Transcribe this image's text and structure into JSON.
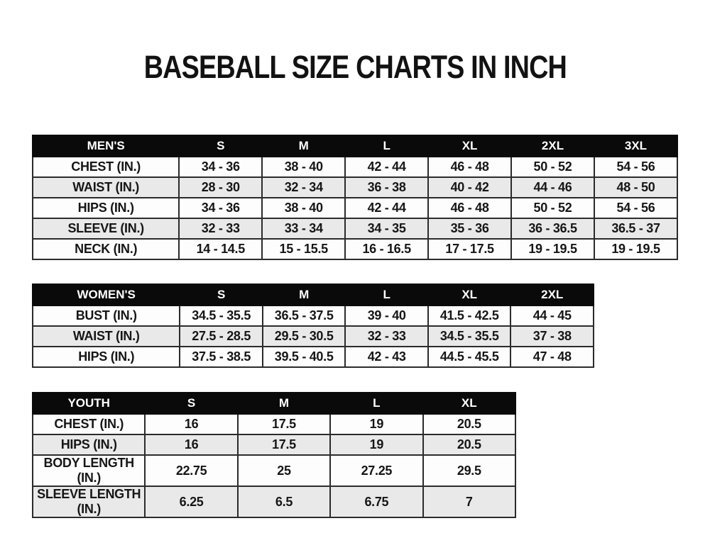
{
  "page": {
    "title": "BASEBALL SIZE CHARTS IN INCH",
    "background_color": "#ffffff",
    "header_bg_color": "#0a0a0a",
    "header_text_color": "#ffffff",
    "row_bg_color": "#fdfdfd",
    "row_alt_bg_color": "#e9e9e9",
    "border_color": "#2b2b2b",
    "text_color": "#161616"
  },
  "tables": [
    {
      "name": "mens",
      "header": [
        "MEN'S",
        "S",
        "M",
        "L",
        "XL",
        "2XL",
        "3XL"
      ],
      "rows": [
        [
          "CHEST (IN.)",
          "34 - 36",
          "38 - 40",
          "42 - 44",
          "46 - 48",
          "50 - 52",
          "54 - 56"
        ],
        [
          "WAIST (IN.)",
          "28 - 30",
          "32 - 34",
          "36 - 38",
          "40 - 42",
          "44 - 46",
          "48 - 50"
        ],
        [
          "HIPS (IN.)",
          "34 - 36",
          "38 - 40",
          "42 - 44",
          "46 - 48",
          "50 - 52",
          "54 - 56"
        ],
        [
          "SLEEVE (IN.)",
          "32 - 33",
          "33 - 34",
          "34 - 35",
          "35 - 36",
          "36 - 36.5",
          "36.5 - 37"
        ],
        [
          "NECK (IN.)",
          "14 - 14.5",
          "15 - 15.5",
          "16 - 16.5",
          "17 - 17.5",
          "19 - 19.5",
          "19 - 19.5"
        ]
      ]
    },
    {
      "name": "womens",
      "header": [
        "WOMEN'S",
        "S",
        "M",
        "L",
        "XL",
        "2XL"
      ],
      "rows": [
        [
          "BUST (IN.)",
          "34.5 - 35.5",
          "36.5 - 37.5",
          "39 - 40",
          "41.5 - 42.5",
          "44 - 45"
        ],
        [
          "WAIST (IN.)",
          "27.5 - 28.5",
          "29.5 - 30.5",
          "32 - 33",
          "34.5 - 35.5",
          "37 - 38"
        ],
        [
          "HIPS (IN.)",
          "37.5 - 38.5",
          "39.5 - 40.5",
          "42 - 43",
          "44.5 - 45.5",
          "47 - 48"
        ]
      ]
    },
    {
      "name": "youth",
      "header": [
        "YOUTH",
        "S",
        "M",
        "L",
        "XL"
      ],
      "rows": [
        [
          "CHEST (IN.)",
          "16",
          "17.5",
          "19",
          "20.5"
        ],
        [
          "HIPS (IN.)",
          "16",
          "17.5",
          "19",
          "20.5"
        ],
        [
          "BODY LENGTH (IN.)",
          "22.75",
          "25",
          "27.25",
          "29.5"
        ],
        [
          "SLEEVE LENGTH (IN.)",
          "6.25",
          "6.5",
          "6.75",
          "7"
        ]
      ]
    }
  ]
}
